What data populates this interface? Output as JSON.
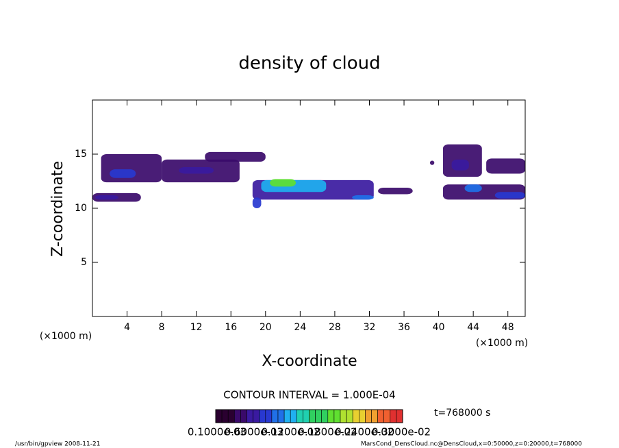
{
  "chart_data": {
    "type": "contour",
    "title": "density of cloud",
    "xlabel": "X-coordinate",
    "ylabel": "Z-coordinate",
    "x_unit_left": "(×1000 m)",
    "x_unit_right": "(×1000 m)",
    "xlim": [
      0,
      50
    ],
    "ylim": [
      0,
      20
    ],
    "xticks": [
      4,
      8,
      12,
      16,
      20,
      24,
      28,
      32,
      36,
      40,
      44,
      48
    ],
    "yticks": [
      5,
      10,
      15
    ],
    "contour_interval": "CONTOUR INTERVAL = 1.000E-04",
    "time_label": "t=768000 s",
    "colorbar_labels": [
      "0.1000e-03",
      "0.6000e-03",
      "0.1200e-02",
      "0.1800e-02",
      "0.2400e-02",
      "0.3000e-02"
    ],
    "colorbar_range": [
      0.0001,
      0.003
    ],
    "colormap": [
      "#2a0030",
      "#3a0a6a",
      "#3a1aa0",
      "#2838d0",
      "#2070e8",
      "#20b0f0",
      "#20d0b0",
      "#30d060",
      "#60e030",
      "#b0e030",
      "#e8d030",
      "#f0a030",
      "#f06030",
      "#e03030"
    ],
    "patches": [
      {
        "x": [
          0,
          5.6
        ],
        "z": [
          10.6,
          11.4
        ],
        "value": 0.0003
      },
      {
        "x": [
          0.3,
          3
        ],
        "z": [
          10.8,
          11.2
        ],
        "value": 0.0005
      },
      {
        "x": [
          1,
          8
        ],
        "z": [
          12.4,
          15
        ],
        "value": 0.0003
      },
      {
        "x": [
          2,
          5
        ],
        "z": [
          12.8,
          13.6
        ],
        "value": 0.0007
      },
      {
        "x": [
          8,
          17
        ],
        "z": [
          12.4,
          14.5
        ],
        "value": 0.0003
      },
      {
        "x": [
          10,
          14
        ],
        "z": [
          13.2,
          13.8
        ],
        "value": 0.0005
      },
      {
        "x": [
          13,
          20
        ],
        "z": [
          14.3,
          15.2
        ],
        "value": 0.0002
      },
      {
        "x": [
          18.5,
          32.5
        ],
        "z": [
          10.8,
          12.6
        ],
        "value": 0.0004
      },
      {
        "x": [
          18.5,
          19.5
        ],
        "z": [
          10,
          11
        ],
        "value": 0.0006
      },
      {
        "x": [
          19.5,
          27
        ],
        "z": [
          11.5,
          12.6
        ],
        "value": 0.0011
      },
      {
        "x": [
          20.5,
          23.5
        ],
        "z": [
          12,
          12.7
        ],
        "value": 0.0016
      },
      {
        "x": [
          30,
          32.5
        ],
        "z": [
          10.8,
          11.2
        ],
        "value": 0.0008
      },
      {
        "x": [
          33,
          37
        ],
        "z": [
          11.3,
          11.9
        ],
        "value": 0.0003
      },
      {
        "x": [
          40.5,
          50
        ],
        "z": [
          10.8,
          12.2
        ],
        "value": 0.0003
      },
      {
        "x": [
          43,
          45
        ],
        "z": [
          11.5,
          12.2
        ],
        "value": 0.0009
      },
      {
        "x": [
          46.5,
          50
        ],
        "z": [
          10.9,
          11.5
        ],
        "value": 0.0007
      },
      {
        "x": [
          40.5,
          45
        ],
        "z": [
          12.9,
          15.9
        ],
        "value": 0.0003
      },
      {
        "x": [
          41.5,
          43.5
        ],
        "z": [
          13.5,
          14.5
        ],
        "value": 0.0005
      },
      {
        "x": [
          45.5,
          50
        ],
        "z": [
          13.2,
          14.6
        ],
        "value": 0.0002
      },
      {
        "x": [
          39,
          39.5
        ],
        "z": [
          14,
          14.4
        ],
        "value": 0.0002
      }
    ]
  },
  "footer": {
    "left": "/usr/bin/gpview  2008-11-21",
    "right": "MarsCond_DensCloud.nc@DensCloud,x=0:50000,z=0:20000,t=768000"
  }
}
